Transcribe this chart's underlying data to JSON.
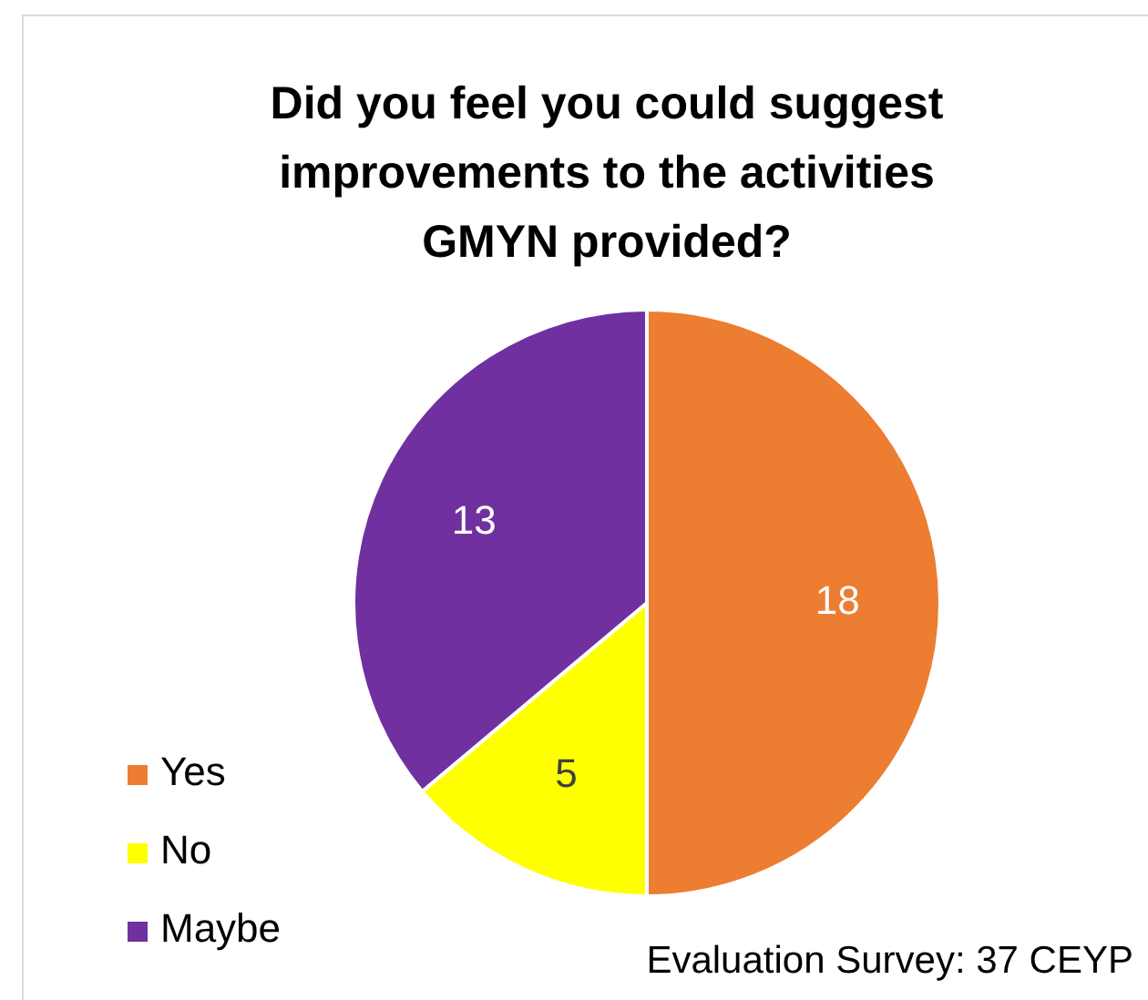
{
  "chart_data": {
    "type": "pie",
    "title": "Did you feel you could suggest improvements to the activities GMYN provided?",
    "categories": [
      "Yes",
      "No",
      "Maybe"
    ],
    "values": [
      18,
      5,
      13
    ],
    "colors": [
      "#ed7d31",
      "#ffff00",
      "#7030a0"
    ],
    "data_labels": true,
    "legend": "bottom left",
    "annotations": [
      "Evaluation Survey: 37 CEYP"
    ]
  }
}
